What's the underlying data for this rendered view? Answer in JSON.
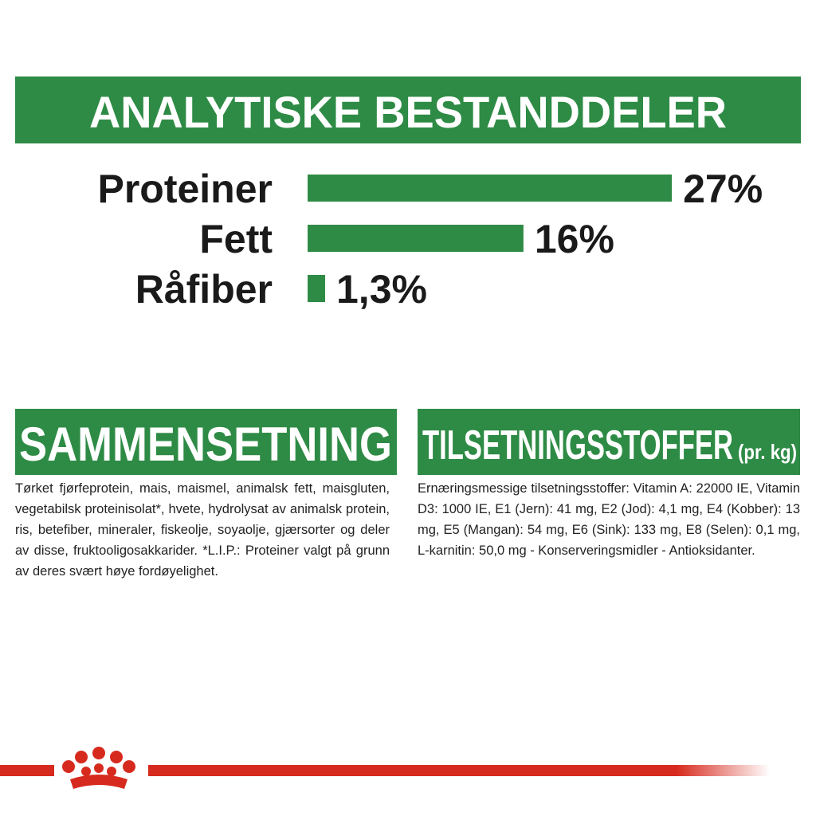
{
  "chart_data": {
    "type": "bar",
    "orientation": "horizontal",
    "title": "ANALYTISKE BESTANDDELER",
    "categories": [
      "Proteiner",
      "Fett",
      "Råfiber"
    ],
    "values": [
      27,
      16,
      1.3
    ],
    "value_labels": [
      "27%",
      "16%",
      "1,3%"
    ],
    "color": "#2e8b45"
  },
  "composition": {
    "title": "SAMMENSETNING",
    "text": "Tørket fjørfeprotein, mais, maismel, animalsk fett, maisgluten, vegetabilsk proteinisolat*, hvete, hydrolysat av animalsk protein, ris, betefiber, mineraler, fiskeolje, soyaolje, gjærsorter og deler av disse, fruktooligosakkarider. *L.I.P.: Proteiner valgt på grunn av deres svært høye fordøyelighet."
  },
  "additives": {
    "title": "TILSETNINGSSTOFFER",
    "unit": "(pr. kg)",
    "text": "Ernæringsmessige tilsetningsstoffer: Vitamin A: 22000 IE, Vitamin D3: 1000 IE, E1 (Jern): 41 mg, E2 (Jod): 4,1 mg, E4 (Kobber): 13 mg, E5 (Mangan): 54 mg, E6 (Sink): 133 mg, E8 (Selen): 0,1 mg, L-karnitin: 50,0 mg - Konserveringsmidler - Antioksidanter."
  }
}
